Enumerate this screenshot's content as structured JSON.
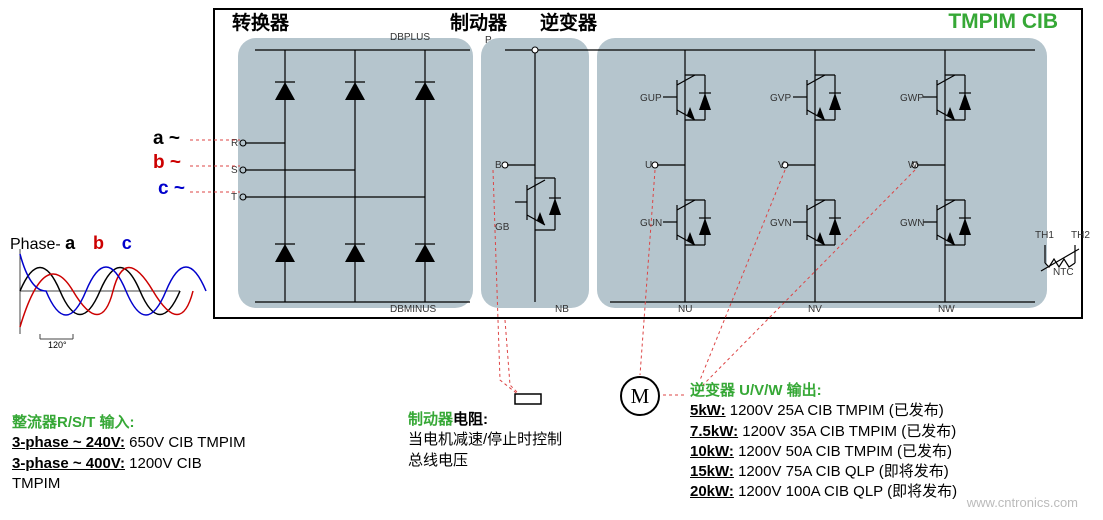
{
  "sections": {
    "converter": "转换器",
    "brake": "制动器",
    "inverter": "逆变器",
    "tmpim": "TMPIM CIB"
  },
  "phases": {
    "a": "a ~",
    "b": "b ~",
    "c": "c ~",
    "label": "Phase-"
  },
  "wave_labels": {
    "a": "a",
    "b": "b",
    "c": "c",
    "deg": "120°"
  },
  "terminals": {
    "dbplus": "DBPLUS",
    "dbminus": "DBMINUS",
    "p": "P",
    "r": "R",
    "s": "S",
    "t": "T",
    "b": "B",
    "gb": "GB",
    "nb": "NB",
    "gup": "GUP",
    "gvp": "GVP",
    "gwp": "GWP",
    "gun": "GUN",
    "gvn": "GVN",
    "gwn": "GWN",
    "u": "U",
    "v": "V",
    "w": "W",
    "nu": "NU",
    "nv": "NV",
    "nw": "NW",
    "th1": "TH1",
    "th2": "TH2",
    "ntc": "NTC"
  },
  "rectifier": {
    "title": "整流器R/S/T 输入:",
    "l1a": "3-phase ~ 240V:",
    "l1b": "  650V CIB TMPIM",
    "l2a": "3-phase ~ 400V:",
    "l2b": "  1200V CIB",
    "l3": "TMPIM"
  },
  "brakeR": {
    "title": "制动器",
    "title2": "电阻:",
    "l1": "当电机减速/停止时控制",
    "l2": "总线电压"
  },
  "inverter": {
    "title": "逆变器 U/V/W 输出:",
    "rows": [
      {
        "k": "5kW:",
        "v": " 1200V 25A CIB TMPIM (已发布)"
      },
      {
        "k": "7.5kW:",
        "v": "  1200V 35A CIB TMPIM (已发布)"
      },
      {
        "k": "10kW:",
        "v": "  1200V 50A CIB TMPIM (已发布)"
      },
      {
        "k": "15kW:",
        "v": "  1200V 75A CIB QLP (即将发布)"
      },
      {
        "k": "20kW:",
        "v": "  1200V 100A CIB QLP (即将发布)"
      }
    ]
  },
  "motor": "M",
  "watermark": "www.cntronics.com",
  "style": {
    "colors": {
      "block": "#a8bbc4",
      "a": "#000",
      "b": "#c00",
      "c": "#00c",
      "green": "#36a836",
      "red": "#d44"
    },
    "fonts": {
      "header": 19,
      "tmpim": 21,
      "body": 15
    }
  }
}
